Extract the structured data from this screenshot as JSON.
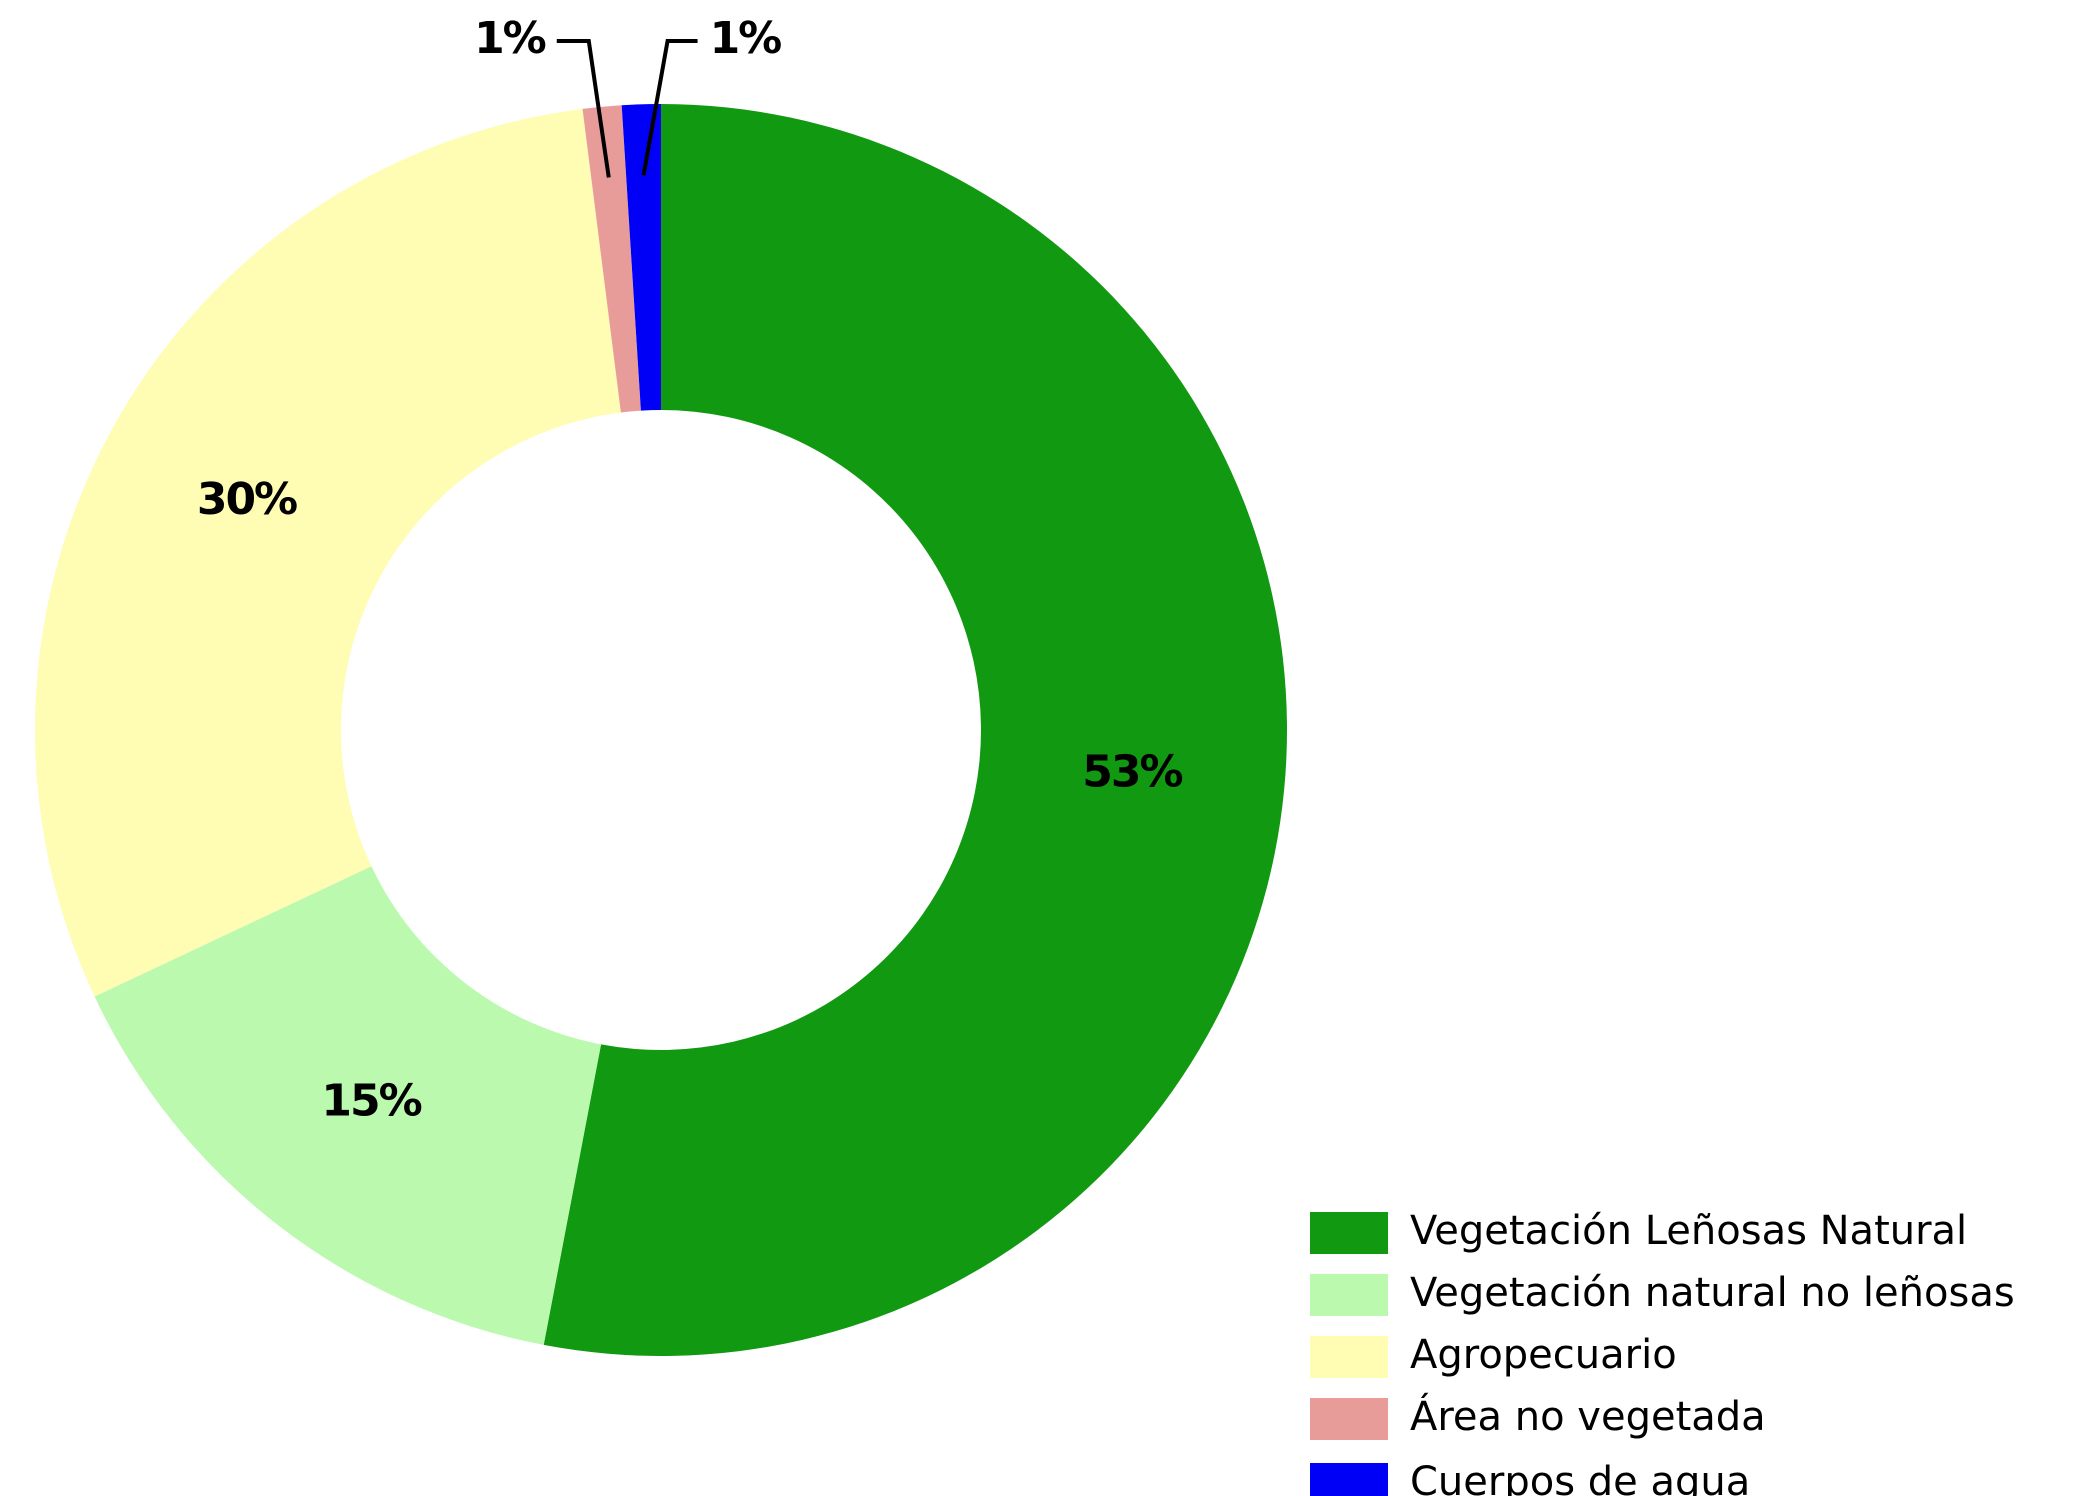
{
  "chart_data": {
    "type": "pie",
    "categories": [
      "Vegetación Leñosas Natural",
      "Vegetación natural no leñosas",
      "Agropecuario",
      "Área no vegetada",
      "Cuerpos de agua"
    ],
    "values": [
      53,
      15,
      30,
      1,
      1
    ],
    "value_labels": [
      "53%",
      "15%",
      "30%",
      "1%",
      "1%"
    ],
    "colors": [
      "#129912",
      "#bbf9ae",
      "#fefdb3",
      "#e89c9a",
      "#0000f6"
    ],
    "legend": "bottom-right"
  }
}
